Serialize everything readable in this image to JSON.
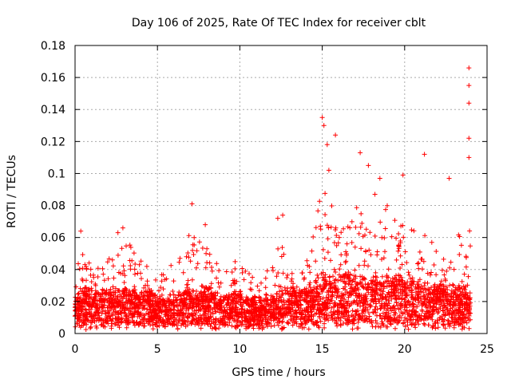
{
  "chart_data": {
    "type": "scatter",
    "title": "Day 106 of 2025, Rate Of TEC Index for receiver cblt",
    "xlabel": "GPS time / hours",
    "ylabel": "ROTI / TECUs",
    "xlim": [
      0,
      25
    ],
    "ylim": [
      0,
      0.18
    ],
    "x_ticks": [
      0,
      5,
      10,
      15,
      20,
      25
    ],
    "y_ticks": [
      0,
      0.02,
      0.04,
      0.06,
      0.08,
      0.1,
      0.12,
      0.14,
      0.16,
      0.18
    ],
    "x_tick_labels": [
      "0",
      "5",
      "10",
      "15",
      "20",
      "25"
    ],
    "y_tick_labels": [
      "0",
      "0.02",
      "0.04",
      "0.06",
      "0.08",
      "0.1",
      "0.12",
      "0.14",
      "0.16",
      "0.18"
    ],
    "grid": true,
    "marker": "plus",
    "color": "#ff0000",
    "profile": {
      "hour": [
        0,
        0.5,
        1,
        1.5,
        2,
        2.5,
        3,
        3.5,
        4,
        4.5,
        5,
        5.5,
        6,
        6.5,
        7,
        7.5,
        8,
        8.5,
        9,
        9.5,
        10,
        10.5,
        11,
        11.5,
        12,
        12.5,
        13,
        13.5,
        14,
        14.5,
        15,
        15.5,
        16,
        16.5,
        17,
        17.5,
        18,
        18.5,
        19,
        19.5,
        20,
        20.5,
        21,
        21.5,
        22,
        22.5,
        23,
        23.5,
        24
      ],
      "median_roti": [
        0.015,
        0.017,
        0.016,
        0.016,
        0.016,
        0.017,
        0.017,
        0.017,
        0.016,
        0.016,
        0.014,
        0.014,
        0.014,
        0.015,
        0.017,
        0.017,
        0.017,
        0.016,
        0.015,
        0.015,
        0.015,
        0.014,
        0.013,
        0.014,
        0.015,
        0.017,
        0.018,
        0.017,
        0.018,
        0.02,
        0.024,
        0.024,
        0.023,
        0.024,
        0.023,
        0.022,
        0.022,
        0.022,
        0.022,
        0.022,
        0.021,
        0.021,
        0.02,
        0.019,
        0.018,
        0.018,
        0.018,
        0.018,
        0.018
      ],
      "upper_roti": [
        0.045,
        0.052,
        0.045,
        0.042,
        0.048,
        0.055,
        0.06,
        0.055,
        0.048,
        0.045,
        0.04,
        0.042,
        0.045,
        0.05,
        0.065,
        0.06,
        0.055,
        0.045,
        0.042,
        0.045,
        0.045,
        0.04,
        0.035,
        0.04,
        0.055,
        0.06,
        0.05,
        0.045,
        0.05,
        0.065,
        0.095,
        0.085,
        0.075,
        0.07,
        0.08,
        0.075,
        0.08,
        0.085,
        0.08,
        0.07,
        0.07,
        0.065,
        0.065,
        0.06,
        0.055,
        0.055,
        0.06,
        0.065,
        0.07
      ]
    },
    "peaks": [
      {
        "x": 0.35,
        "y": 0.064
      },
      {
        "x": 2.6,
        "y": 0.063
      },
      {
        "x": 2.9,
        "y": 0.066
      },
      {
        "x": 7.1,
        "y": 0.081
      },
      {
        "x": 7.9,
        "y": 0.068
      },
      {
        "x": 12.3,
        "y": 0.072
      },
      {
        "x": 12.6,
        "y": 0.074
      },
      {
        "x": 15.0,
        "y": 0.135
      },
      {
        "x": 15.1,
        "y": 0.13
      },
      {
        "x": 15.3,
        "y": 0.118
      },
      {
        "x": 15.4,
        "y": 0.102
      },
      {
        "x": 15.8,
        "y": 0.124
      },
      {
        "x": 17.3,
        "y": 0.113
      },
      {
        "x": 17.8,
        "y": 0.105
      },
      {
        "x": 18.2,
        "y": 0.087
      },
      {
        "x": 18.5,
        "y": 0.097
      },
      {
        "x": 19.9,
        "y": 0.099
      },
      {
        "x": 21.2,
        "y": 0.112
      },
      {
        "x": 22.7,
        "y": 0.097
      },
      {
        "x": 23.9,
        "y": 0.166
      },
      {
        "x": 23.9,
        "y": 0.155
      },
      {
        "x": 23.9,
        "y": 0.144
      },
      {
        "x": 23.9,
        "y": 0.122
      },
      {
        "x": 23.9,
        "y": 0.11
      }
    ]
  }
}
